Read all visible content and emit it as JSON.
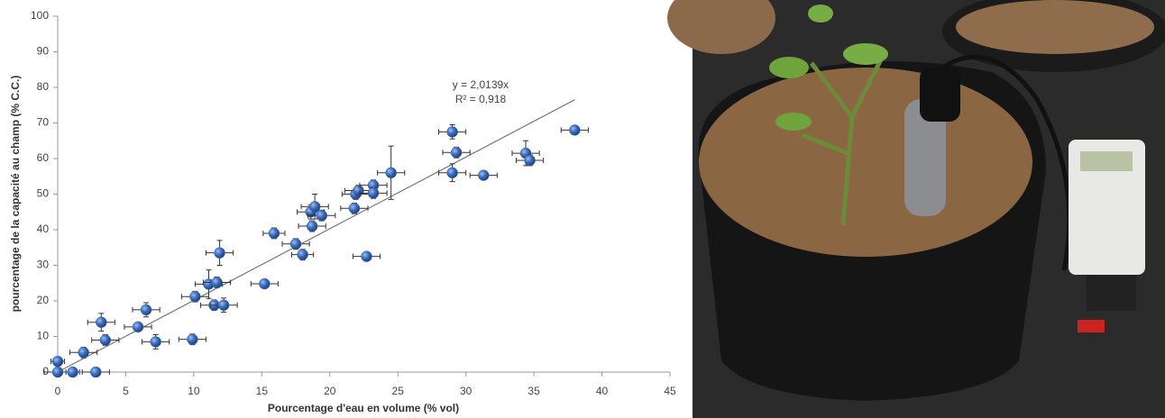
{
  "chart_data": {
    "type": "scatter",
    "xlabel": "Pourcentage d'eau en volume (% vol)",
    "ylabel": "pourcentage de la capacité au champ (% C.C.)",
    "annotations": [
      "y = 2,0139x",
      "R² = 0,918"
    ],
    "trendline": {
      "slope": 2.0139,
      "x_range": [
        0,
        38
      ]
    },
    "color": "#3f6fbf",
    "x": [
      0,
      0,
      1.1,
      1.9,
      2.8,
      3.2,
      3.5,
      5.9,
      6.5,
      7.2,
      9.9,
      10.1,
      11.1,
      11.5,
      11.7,
      11.9,
      12.2,
      15.2,
      15.9,
      17.5,
      18,
      18.6,
      18.7,
      18.9,
      19.4,
      21.8,
      21.9,
      22.1,
      22.7,
      23.2,
      23.2,
      24.5,
      29,
      29,
      29.3,
      31.3,
      34.4,
      34.7,
      38
    ],
    "y": [
      0,
      3,
      0,
      5.5,
      0,
      14,
      9,
      12.7,
      17.5,
      8.5,
      9.2,
      21.2,
      24.7,
      18.8,
      25.2,
      33.5,
      18.8,
      24.8,
      39,
      36,
      33,
      45,
      41,
      46.5,
      44,
      46,
      50,
      51,
      32.5,
      52.5,
      50.3,
      56,
      67.5,
      56,
      61.7,
      55.3,
      61.5,
      59.5,
      68
    ],
    "x_errors": [
      1,
      0.5,
      0.5,
      1,
      1,
      1,
      1,
      1,
      1,
      1,
      1,
      1,
      1,
      1,
      1,
      1,
      1,
      1,
      0.8,
      1,
      0.8,
      1,
      1,
      1,
      1,
      1,
      1,
      1,
      1,
      1,
      1,
      1,
      1,
      1,
      1,
      1,
      1,
      1,
      1
    ],
    "y_errors": [
      1,
      1,
      1,
      1.5,
      1,
      2.5,
      1.5,
      1,
      2,
      2,
      1.5,
      1.5,
      4,
      1.5,
      1.5,
      3.5,
      2,
      1,
      1.5,
      1.5,
      1.5,
      2,
      1.5,
      3.5,
      1.5,
      1.5,
      1.5,
      1.5,
      1,
      1.5,
      1.5,
      7.5,
      2,
      2.5,
      1.5,
      1,
      3.5,
      1.5,
      1
    ],
    "xlim": [
      0,
      45
    ],
    "xticks": [
      0,
      5,
      10,
      15,
      20,
      25,
      30,
      35,
      40,
      45
    ],
    "ylim": [
      0,
      100
    ],
    "yticks": [
      0,
      10,
      20,
      30,
      40,
      50,
      60,
      70,
      80,
      90,
      100
    ]
  }
}
